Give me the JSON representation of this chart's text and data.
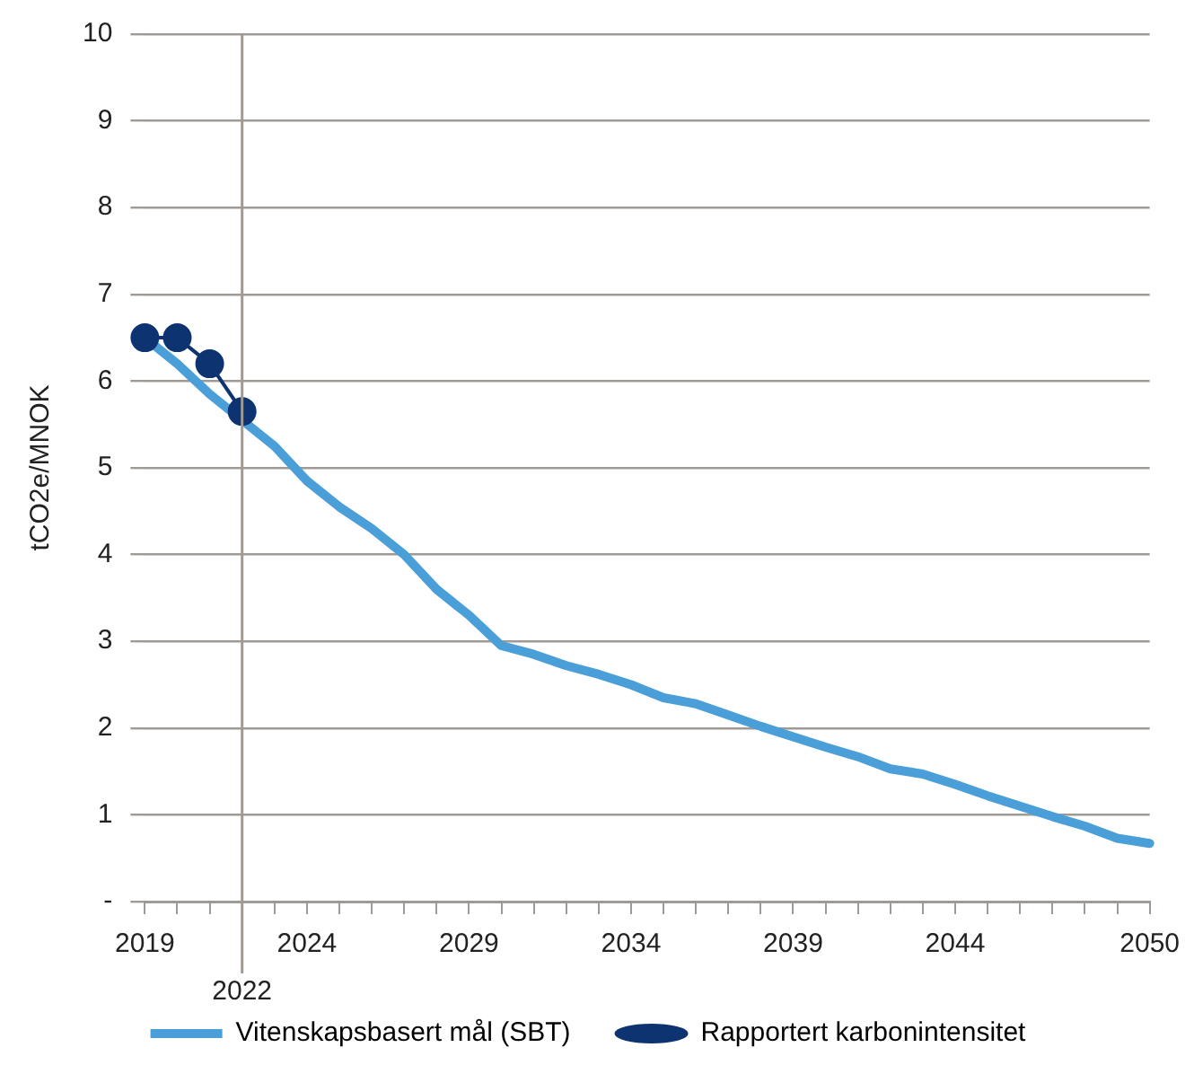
{
  "chart_data": {
    "type": "line",
    "ylabel": "tCO2e/MNOK",
    "x": [
      2019,
      2020,
      2021,
      2022,
      2023,
      2024,
      2025,
      2026,
      2027,
      2028,
      2029,
      2030,
      2031,
      2032,
      2033,
      2034,
      2035,
      2036,
      2037,
      2038,
      2039,
      2040,
      2041,
      2042,
      2043,
      2044,
      2045,
      2046,
      2047,
      2048,
      2049,
      2050
    ],
    "series": [
      {
        "name": "Vitenskapsbasert mål (SBT)",
        "color": "#4a9fd8",
        "marker": "none",
        "values": [
          6.5,
          6.2,
          5.85,
          5.55,
          5.25,
          4.85,
          4.55,
          4.3,
          4.0,
          3.6,
          3.3,
          2.95,
          2.85,
          2.72,
          2.62,
          2.5,
          2.35,
          2.28,
          2.15,
          2.02,
          1.9,
          1.78,
          1.67,
          1.53,
          1.47,
          1.35,
          1.22,
          1.1,
          0.98,
          0.87,
          0.73,
          0.67
        ]
      },
      {
        "name": "Rapportert karbonintensitet",
        "color": "#0d3470",
        "marker": "circle",
        "x": [
          2019,
          2020,
          2021,
          2022
        ],
        "values": [
          6.5,
          6.5,
          6.2,
          5.65
        ]
      }
    ],
    "xlim": [
      2019,
      2050
    ],
    "xticks": [
      2019,
      {
        "value": 2020,
        "label": null
      },
      {
        "value": 2021,
        "label": null
      },
      {
        "value": 2022,
        "label": null
      },
      {
        "value": 2023,
        "label": null
      },
      2024,
      {
        "value": 2025,
        "label": null
      },
      {
        "value": 2026,
        "label": null
      },
      {
        "value": 2027,
        "label": null
      },
      {
        "value": 2028,
        "label": null
      },
      2029,
      {
        "value": 2030,
        "label": null
      },
      {
        "value": 2031,
        "label": null
      },
      {
        "value": 2032,
        "label": null
      },
      {
        "value": 2033,
        "label": null
      },
      2034,
      {
        "value": 2035,
        "label": null
      },
      {
        "value": 2036,
        "label": null
      },
      {
        "value": 2037,
        "label": null
      },
      {
        "value": 2038,
        "label": null
      },
      2039,
      {
        "value": 2040,
        "label": null
      },
      {
        "value": 2041,
        "label": null
      },
      {
        "value": 2042,
        "label": null
      },
      {
        "value": 2043,
        "label": null
      },
      2044,
      {
        "value": 2045,
        "label": null
      },
      {
        "value": 2046,
        "label": null
      },
      {
        "value": 2047,
        "label": null
      },
      {
        "value": 2048,
        "label": null
      },
      {
        "value": 2049,
        "label": null
      },
      2050
    ],
    "ylim": [
      0,
      10
    ],
    "yticks": [
      {
        "value": 0,
        "label": "-"
      },
      1,
      2,
      3,
      4,
      5,
      6,
      7,
      8,
      9,
      10
    ],
    "ref_lines": [
      {
        "axis": "x",
        "value": 2022,
        "label": "2022",
        "color": "#a09a94"
      }
    ],
    "grid": "y",
    "legend": "bottom"
  }
}
